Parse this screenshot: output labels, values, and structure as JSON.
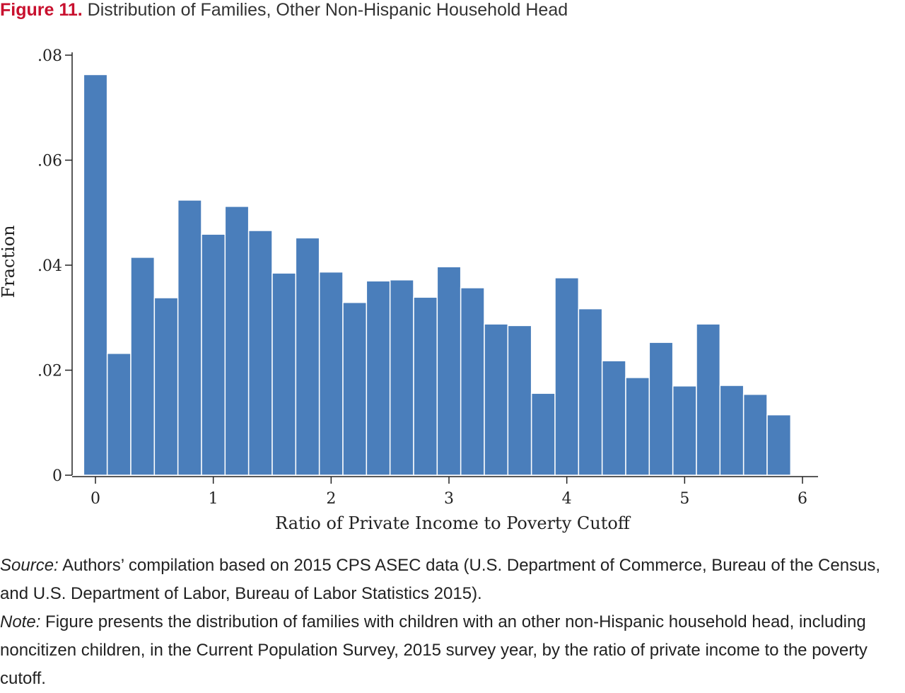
{
  "header": {
    "figure_label": "Figure 11.",
    "title": "Distribution of Families, Other Non-Hispanic Household Head"
  },
  "chart_data": {
    "type": "bar",
    "xlabel": "Ratio of Private Income to Poverty Cutoff",
    "ylabel": "Fraction",
    "bin_width": 0.2,
    "bin_starts": [
      -0.1,
      0.1,
      0.3,
      0.5,
      0.7,
      0.9,
      1.1,
      1.3,
      1.5,
      1.7,
      1.9,
      2.1,
      2.3,
      2.5,
      2.7,
      2.9,
      3.1,
      3.3,
      3.5,
      3.7,
      3.9,
      4.1,
      4.3,
      4.5,
      4.7,
      4.9,
      5.1,
      5.3,
      5.5,
      5.7
    ],
    "values": [
      0.0763,
      0.0232,
      0.0415,
      0.0338,
      0.0524,
      0.0459,
      0.0512,
      0.0466,
      0.0385,
      0.0452,
      0.0387,
      0.0329,
      0.037,
      0.0372,
      0.0339,
      0.0397,
      0.0357,
      0.0288,
      0.0285,
      0.0156,
      0.0376,
      0.0317,
      0.0218,
      0.0186,
      0.0253,
      0.017,
      0.0288,
      0.0171,
      0.0154,
      0.0115
    ],
    "xlim": [
      -0.1,
      6
    ],
    "ylim": [
      0,
      0.08
    ],
    "xticks": [
      0,
      1,
      2,
      3,
      4,
      5,
      6
    ],
    "xtick_labels": [
      "0",
      "1",
      "2",
      "3",
      "4",
      "5",
      "6"
    ],
    "yticks": [
      0,
      0.02,
      0.04,
      0.06,
      0.08
    ],
    "ytick_labels": [
      "0",
      ".02",
      ".04",
      ".06",
      ".08"
    ],
    "grid": false,
    "legend": "none",
    "bar_color": "#4a7ebb"
  },
  "notes": {
    "source_label": "Source:",
    "source_text": " Authors’ compilation based on 2015 CPS ASEC data (U.S. Department of Commerce, Bureau of the Census, and U.S. Department of Labor, Bureau of Labor Statistics 2015).",
    "note_label": "Note:",
    "note_text": " Figure presents the distribution of families with children with an other non-Hispanic household head, including noncitizen children, in the Current Population Survey, 2015 survey year, by the ratio of private income to the poverty cutoff."
  }
}
